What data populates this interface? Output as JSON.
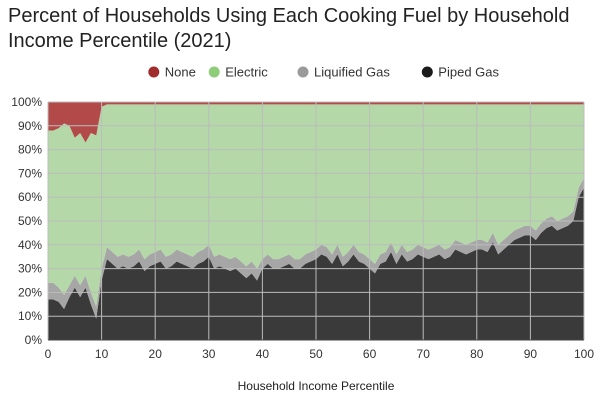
{
  "chart_data": {
    "type": "area",
    "title": "Percent of Households Using Each Cooking Fuel by Household Income Percentile (2021)",
    "xlabel": "Household Income Percentile",
    "ylabel": "",
    "xlim": [
      0,
      100
    ],
    "ylim": [
      0,
      100
    ],
    "stacked": true,
    "grid": true,
    "legend_position": "top",
    "x_ticks": [
      0,
      10,
      20,
      30,
      40,
      50,
      60,
      70,
      80,
      90,
      100
    ],
    "x_tick_labels": [
      "0",
      "10",
      "20",
      "30",
      "40",
      "50",
      "60",
      "70",
      "80",
      "90",
      "100"
    ],
    "y_ticks": [
      0,
      10,
      20,
      30,
      40,
      50,
      60,
      70,
      80,
      90,
      100
    ],
    "y_tick_labels": [
      "0%",
      "10%",
      "20%",
      "30%",
      "40%",
      "50%",
      "60%",
      "70%",
      "80%",
      "90%",
      "100%"
    ],
    "x": [
      0,
      1,
      2,
      3,
      4,
      5,
      6,
      7,
      8,
      9,
      10,
      11,
      12,
      13,
      14,
      15,
      16,
      17,
      18,
      19,
      20,
      21,
      22,
      23,
      24,
      25,
      26,
      27,
      28,
      29,
      30,
      31,
      32,
      33,
      34,
      35,
      36,
      37,
      38,
      39,
      40,
      41,
      42,
      43,
      44,
      45,
      46,
      47,
      48,
      49,
      50,
      51,
      52,
      53,
      54,
      55,
      56,
      57,
      58,
      59,
      60,
      61,
      62,
      63,
      64,
      65,
      66,
      67,
      68,
      69,
      70,
      71,
      72,
      73,
      74,
      75,
      76,
      77,
      78,
      79,
      80,
      81,
      82,
      83,
      84,
      85,
      86,
      87,
      88,
      89,
      90,
      91,
      92,
      93,
      94,
      95,
      96,
      97,
      98,
      99,
      100
    ],
    "series": [
      {
        "name": "Piped Gas",
        "color": "#3a3a3a",
        "values": [
          17,
          17,
          16,
          13,
          18,
          22,
          18,
          22,
          15,
          9,
          25,
          34,
          32,
          30,
          31,
          30,
          31,
          33,
          29,
          31,
          32,
          33,
          30,
          31,
          33,
          32,
          31,
          30,
          32,
          33,
          35,
          30,
          31,
          30,
          29,
          30,
          28,
          26,
          28,
          25,
          30,
          32,
          30,
          30,
          31,
          32,
          30,
          30,
          32,
          33,
          34,
          36,
          35,
          32,
          36,
          31,
          33,
          36,
          33,
          32,
          30,
          28,
          32,
          33,
          37,
          32,
          36,
          33,
          34,
          36,
          35,
          34,
          35,
          36,
          34,
          35,
          38,
          37,
          36,
          37,
          38,
          38,
          37,
          41,
          36,
          38,
          40,
          42,
          43,
          44,
          44,
          42,
          45,
          47,
          48,
          46,
          47,
          48,
          50,
          60,
          64
        ]
      },
      {
        "name": "Liquified Gas",
        "color": "#a6a6a6",
        "values": [
          7,
          7,
          6,
          6,
          5,
          5,
          5,
          5,
          5,
          5,
          5,
          5,
          5,
          5,
          5,
          5,
          5,
          5,
          5,
          5,
          5,
          5,
          5,
          5,
          5,
          5,
          5,
          5,
          5,
          5,
          5,
          5,
          5,
          5,
          5,
          5,
          5,
          5,
          5,
          5,
          4,
          4,
          4,
          4,
          4,
          4,
          4,
          4,
          4,
          4,
          4,
          4,
          4,
          4,
          4,
          4,
          4,
          4,
          4,
          4,
          4,
          4,
          4,
          4,
          4,
          4,
          4,
          4,
          4,
          4,
          4,
          4,
          4,
          4,
          4,
          4,
          4,
          4,
          4,
          4,
          4,
          4,
          4,
          4,
          4,
          4,
          4,
          4,
          4,
          4,
          4,
          4,
          4,
          4,
          4,
          4,
          4,
          4,
          4,
          4,
          4
        ]
      },
      {
        "name": "Electric",
        "color": "#b4d8a8",
        "values": [
          64,
          64,
          67,
          72,
          67,
          58,
          64,
          56,
          67,
          72,
          68,
          60,
          62,
          64,
          63,
          64,
          63,
          61,
          65,
          63,
          62,
          61,
          64,
          63,
          61,
          62,
          63,
          64,
          62,
          61,
          59,
          64,
          63,
          64,
          65,
          64,
          66,
          68,
          66,
          69,
          65,
          63,
          65,
          65,
          64,
          63,
          65,
          65,
          63,
          62,
          61,
          59,
          60,
          63,
          59,
          64,
          62,
          59,
          62,
          63,
          65,
          67,
          63,
          62,
          58,
          63,
          59,
          62,
          61,
          59,
          60,
          61,
          60,
          59,
          61,
          60,
          57,
          58,
          59,
          58,
          57,
          57,
          58,
          54,
          59,
          57,
          55,
          53,
          52,
          51,
          51,
          53,
          50,
          48,
          47,
          49,
          48,
          47,
          45,
          35,
          31
        ]
      },
      {
        "name": "None",
        "color": "#b34a4a",
        "values": [
          12,
          12,
          11,
          9,
          10,
          15,
          13,
          17,
          13,
          14,
          2,
          1,
          1,
          1,
          1,
          1,
          1,
          1,
          1,
          1,
          1,
          1,
          1,
          1,
          1,
          1,
          1,
          1,
          1,
          1,
          1,
          1,
          1,
          1,
          1,
          1,
          1,
          1,
          1,
          1,
          1,
          1,
          1,
          1,
          1,
          1,
          1,
          1,
          1,
          1,
          1,
          1,
          1,
          1,
          1,
          1,
          1,
          1,
          1,
          1,
          1,
          1,
          1,
          1,
          1,
          1,
          1,
          1,
          1,
          1,
          1,
          1,
          1,
          1,
          1,
          1,
          1,
          1,
          1,
          1,
          1,
          1,
          1,
          1,
          1,
          1,
          1,
          1,
          1,
          1,
          1,
          1,
          1,
          1,
          1,
          1,
          1,
          1,
          1,
          1,
          1
        ]
      }
    ],
    "legend": [
      {
        "name": "None",
        "color": "#a02c2c"
      },
      {
        "name": "Electric",
        "color": "#8fcc7a"
      },
      {
        "name": "Liquified Gas",
        "color": "#9a9a9a"
      },
      {
        "name": "Piped Gas",
        "color": "#1a1a1a"
      }
    ]
  }
}
